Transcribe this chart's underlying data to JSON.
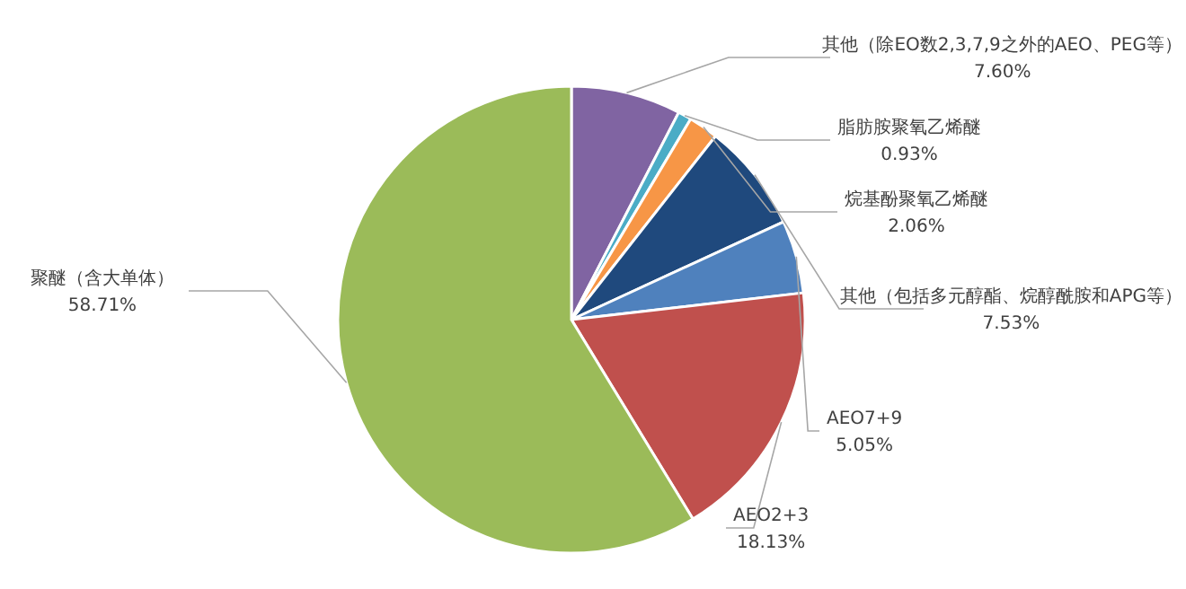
{
  "chart_data": {
    "type": "pie",
    "categories": [
      "其他（除EO数2,3,7,9之外的AEO、PEG等）",
      "脂肪胺聚氧乙烯醚",
      "烷基酚聚氧乙烯醚",
      "其他（包括多元醇酯、烷醇酰胺和APG等）",
      "AEO7+9",
      "AEO2+3",
      "聚醚（含大单体）"
    ],
    "values": [
      7.6,
      0.93,
      2.06,
      7.53,
      5.05,
      18.13,
      58.71
    ],
    "value_labels": [
      "7.60%",
      "0.93%",
      "2.06%",
      "7.53%",
      "5.05%",
      "18.13%",
      "58.71%"
    ],
    "colors": [
      "#8064a2",
      "#4bacc6",
      "#f79646",
      "#1f497d",
      "#4f81bd",
      "#c0504d",
      "#9bbb59"
    ],
    "legend": false
  }
}
